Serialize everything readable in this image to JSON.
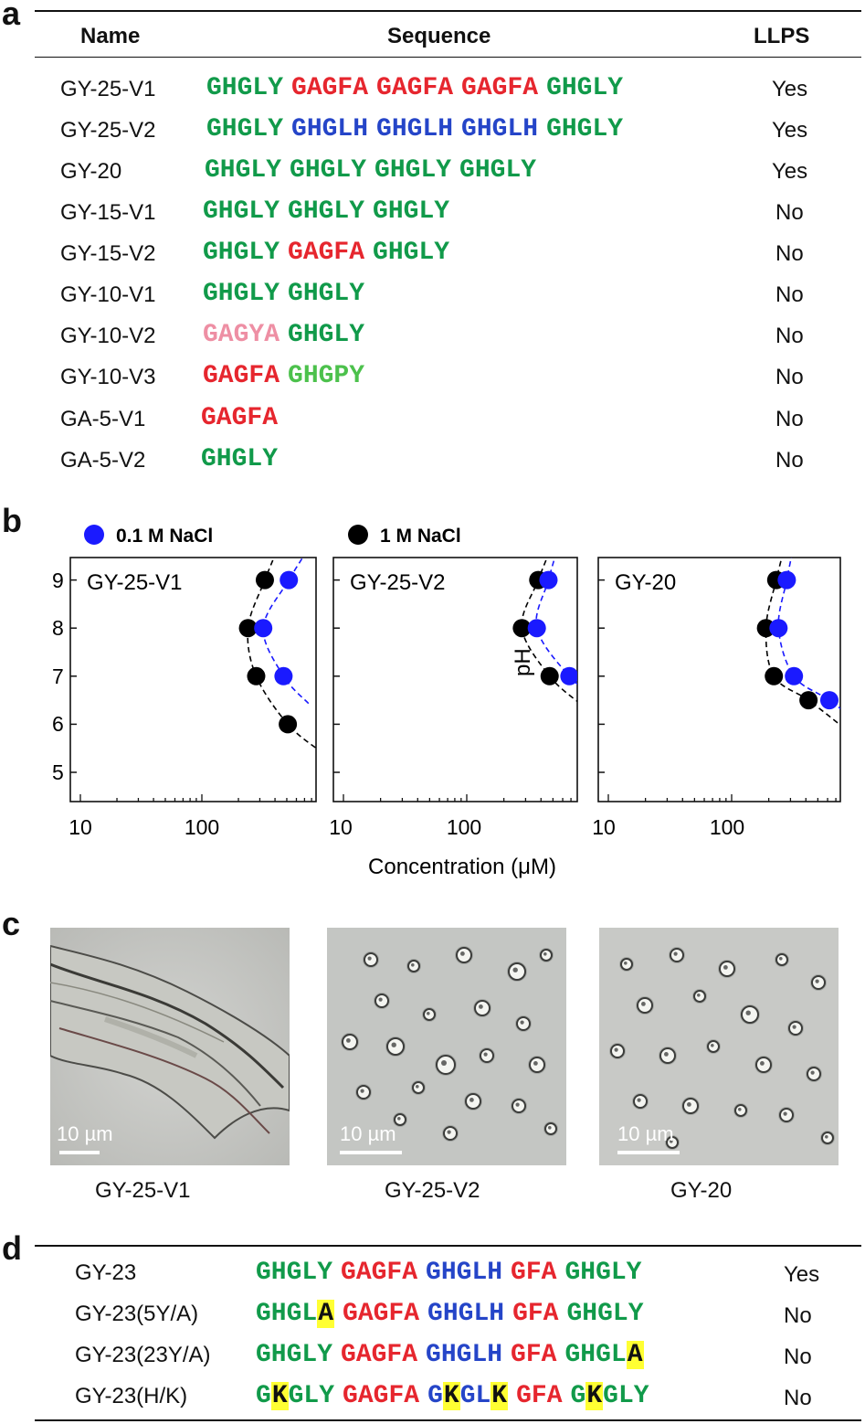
{
  "panel_labels": {
    "a": "a",
    "b": "b",
    "c": "c",
    "d": "d"
  },
  "colors": {
    "gly_green": "#119a4a",
    "gagfa_red": "#e6262e",
    "ghglh_blue": "#2545c8",
    "gagya_pink": "#ee8fa4",
    "ghgpy_lightgreen": "#4cc14c",
    "highlight_yellow": "#ffff33",
    "marker_blue": "#1a1aff",
    "marker_black": "#000000"
  },
  "table_a": {
    "headers": {
      "name": "Name",
      "sequence": "Sequence",
      "llps": "LLPS"
    },
    "rows": [
      {
        "name": "GY-25-V1",
        "seq": [
          [
            "GHGLY",
            "green"
          ],
          [
            "GAGFA",
            "red"
          ],
          [
            "GAGFA",
            "red"
          ],
          [
            "GAGFA",
            "red"
          ],
          [
            "GHGLY",
            "green"
          ]
        ],
        "llps": "Yes"
      },
      {
        "name": "GY-25-V2",
        "seq": [
          [
            "GHGLY",
            "green"
          ],
          [
            "GHGLH",
            "blue"
          ],
          [
            "GHGLH",
            "blue"
          ],
          [
            "GHGLH",
            "blue"
          ],
          [
            "GHGLY",
            "green"
          ]
        ],
        "llps": "Yes"
      },
      {
        "name": "GY-20",
        "seq": [
          [
            "GHGLY",
            "green"
          ],
          [
            "GHGLY",
            "green"
          ],
          [
            "GHGLY",
            "green"
          ],
          [
            "GHGLY",
            "green"
          ]
        ],
        "llps": "Yes"
      },
      {
        "name": "GY-15-V1",
        "seq": [
          [
            "GHGLY",
            "green"
          ],
          [
            "GHGLY",
            "green"
          ],
          [
            "GHGLY",
            "green"
          ]
        ],
        "llps": "No"
      },
      {
        "name": "GY-15-V2",
        "seq": [
          [
            "GHGLY",
            "green"
          ],
          [
            "GAGFA",
            "red"
          ],
          [
            "GHGLY",
            "green"
          ]
        ],
        "llps": "No"
      },
      {
        "name": "GY-10-V1",
        "seq": [
          [
            "GHGLY",
            "green"
          ],
          [
            "GHGLY",
            "green"
          ]
        ],
        "llps": "No"
      },
      {
        "name": "GY-10-V2",
        "seq": [
          [
            "GAGYA",
            "pink"
          ],
          [
            "GHGLY",
            "green"
          ]
        ],
        "llps": "No"
      },
      {
        "name": "GY-10-V3",
        "seq": [
          [
            "GAGFA",
            "red"
          ],
          [
            "GHGPY",
            "lightgreen"
          ]
        ],
        "llps": "No"
      },
      {
        "name": "GA-5-V1",
        "seq": [
          [
            "GAGFA",
            "red"
          ]
        ],
        "llps": "No"
      },
      {
        "name": "GA-5-V2",
        "seq": [
          [
            "GHGLY",
            "green"
          ]
        ],
        "llps": "No"
      }
    ]
  },
  "chart_data": [
    {
      "type": "scatter",
      "title": "GY-25-V1",
      "xlabel": "Concentration (μM)",
      "ylabel": "pH",
      "xscale": "log",
      "xlim": [
        10,
        700
      ],
      "ylim": [
        4.5,
        9.5
      ],
      "xticks": [
        "10",
        "100"
      ],
      "yticks": [
        "5",
        "6",
        "7",
        "8",
        "9"
      ],
      "series": [
        {
          "name": "0.1 M NaCl",
          "color": "#1a1aff",
          "points": [
            [
              520,
              9
            ],
            [
              320,
              8
            ],
            [
              470,
              7
            ]
          ]
        },
        {
          "name": "1 M NaCl",
          "color": "#000000",
          "points": [
            [
              330,
              9
            ],
            [
              240,
              8
            ],
            [
              280,
              7
            ],
            [
              510,
              6
            ]
          ]
        }
      ]
    },
    {
      "type": "scatter",
      "title": "GY-25-V2",
      "xlabel": "Concentration (μM)",
      "ylabel": "pH",
      "xscale": "log",
      "xlim": [
        10,
        700
      ],
      "ylim": [
        4.5,
        9.5
      ],
      "xticks": [
        "10",
        "100"
      ],
      "yticks": [
        "5",
        "6",
        "7",
        "8",
        "9"
      ],
      "series": [
        {
          "name": "0.1 M NaCl",
          "color": "#1a1aff",
          "points": [
            [
              460,
              9
            ],
            [
              370,
              8
            ],
            [
              680,
              7
            ]
          ]
        },
        {
          "name": "1 M NaCl",
          "color": "#000000",
          "points": [
            [
              380,
              9
            ],
            [
              280,
              8
            ],
            [
              470,
              7
            ]
          ]
        }
      ]
    },
    {
      "type": "scatter",
      "title": "GY-20",
      "xlabel": "Concentration (μM)",
      "ylabel": "pH",
      "xscale": "log",
      "xlim": [
        10,
        950
      ],
      "ylim": [
        4.5,
        9.5
      ],
      "xticks": [
        "10",
        "100"
      ],
      "yticks": [
        "5",
        "6",
        "7",
        "8",
        "9"
      ],
      "series": [
        {
          "name": "0.1 M NaCl",
          "color": "#1a1aff",
          "points": [
            [
              280,
              9
            ],
            [
              240,
              8
            ],
            [
              320,
              7
            ],
            [
              620,
              6.5
            ]
          ]
        },
        {
          "name": "1 M NaCl",
          "color": "#000000",
          "points": [
            [
              230,
              9
            ],
            [
              190,
              8
            ],
            [
              220,
              7
            ],
            [
              420,
              6.5
            ]
          ]
        }
      ]
    }
  ],
  "chart_text": {
    "legend_01": "0.1 M NaCl",
    "legend_1": "1 M NaCl",
    "ylabel": "pH",
    "xlabel": "Concentration (μM)",
    "xtick_10": "10",
    "xtick_100": "100",
    "yticks": [
      "9",
      "8",
      "7",
      "6",
      "5"
    ],
    "panel_titles": [
      "GY-25-V1",
      "GY-25-V2",
      "GY-20"
    ]
  },
  "panel_c": {
    "images": [
      {
        "caption": "GY-25-V1",
        "scale": "10 µm"
      },
      {
        "caption": "GY-25-V2",
        "scale": "10 µm"
      },
      {
        "caption": "GY-20",
        "scale": "10 µm"
      }
    ]
  },
  "table_d": {
    "rows": [
      {
        "name": "GY-23",
        "seq": [
          [
            "GHGLY",
            "green"
          ],
          [
            "GAGFA",
            "red"
          ],
          [
            "GHGLH",
            "blue"
          ],
          [
            "GFA",
            "red"
          ],
          [
            "GHGLY",
            "green"
          ]
        ],
        "llps": "Yes"
      },
      {
        "name": "GY-23(5Y/A)",
        "seq": [
          [
            "GHGL",
            "green"
          ],
          [
            "A",
            "hl"
          ],
          [
            "GAGFA",
            "red"
          ],
          [
            "GHGLH",
            "blue"
          ],
          [
            "GFA",
            "red"
          ],
          [
            "GHGLY",
            "green"
          ]
        ],
        "llps": "No"
      },
      {
        "name": "GY-23(23Y/A)",
        "seq": [
          [
            "GHGLY",
            "green"
          ],
          [
            "GAGFA",
            "red"
          ],
          [
            "GHGLH",
            "blue"
          ],
          [
            "GFA",
            "red"
          ],
          [
            "GHGL",
            "green"
          ],
          [
            "A",
            "hl"
          ]
        ],
        "llps": "No"
      },
      {
        "name": "GY-23(H/K)",
        "seq": [
          [
            "G",
            "green"
          ],
          [
            "K",
            "hl"
          ],
          [
            "GLY",
            "green"
          ],
          [
            "GAGFA",
            "red"
          ],
          [
            "G",
            "blue"
          ],
          [
            "K",
            "hl"
          ],
          [
            "GL",
            "blue"
          ],
          [
            "K",
            "hl"
          ],
          [
            "GFA",
            "red"
          ],
          [
            "G",
            "green"
          ],
          [
            "K",
            "hl"
          ],
          [
            "GLY",
            "green"
          ]
        ],
        "llps": "No"
      }
    ]
  }
}
